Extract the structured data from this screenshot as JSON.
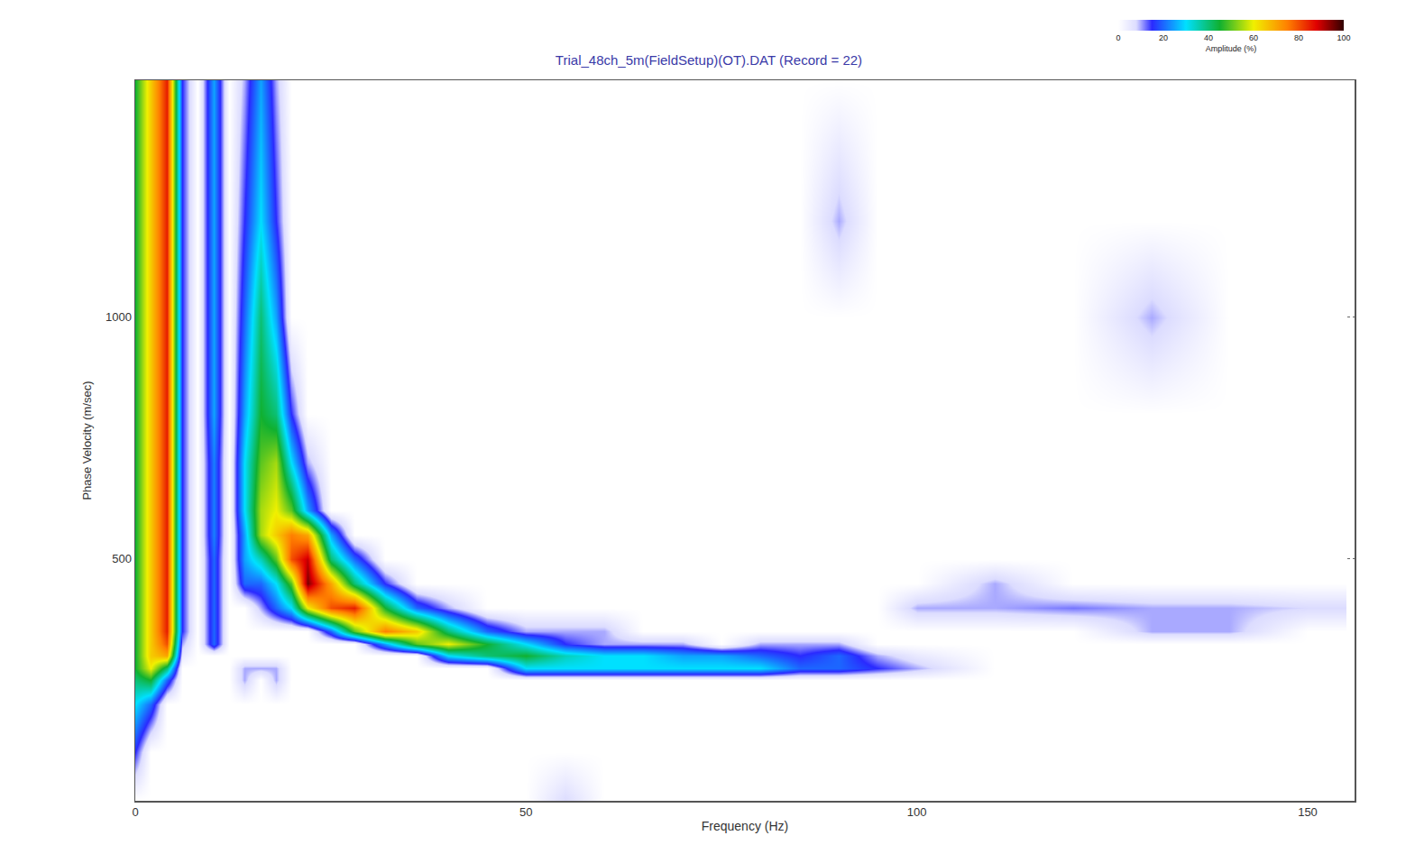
{
  "chart_data": {
    "type": "heatmap",
    "title": "Trial_48ch_5m(FieldSetup)(OT).DAT (Record = 22)",
    "x_label": "Frequency (Hz)",
    "y_label": "Phase Velocity (m/sec)",
    "xlim": [
      0,
      156
    ],
    "ylim": [
      0,
      1490
    ],
    "xticks": [
      0,
      50,
      100,
      150
    ],
    "yticks": [
      500,
      1000
    ],
    "grid": true,
    "colorbar_title": "Amplitude (%)",
    "colorbar_range": [
      0,
      100
    ],
    "colorbar_ticks": [
      0,
      20,
      40,
      60,
      80,
      100
    ],
    "x": [
      0,
      2,
      4,
      6,
      8,
      10,
      12,
      14,
      16,
      18,
      20,
      22,
      25,
      28,
      32,
      36,
      40,
      45,
      50,
      55,
      60,
      65,
      70,
      75,
      80,
      85,
      90,
      95,
      100,
      110,
      120,
      130,
      140,
      150
    ],
    "y": [
      0,
      100,
      200,
      250,
      275,
      300,
      325,
      350,
      400,
      450,
      500,
      550,
      600,
      700,
      800,
      1000,
      1200,
      1490
    ],
    "z": [
      [
        0,
        0,
        0,
        0,
        0,
        0,
        0,
        0,
        0,
        0,
        0,
        0,
        0,
        0,
        0,
        0,
        0,
        0,
        0,
        8,
        0,
        0,
        0,
        0,
        0,
        0,
        0,
        0,
        0,
        0,
        0,
        0,
        0,
        0
      ],
      [
        15,
        0,
        0,
        0,
        0,
        0,
        0,
        0,
        0,
        0,
        0,
        0,
        0,
        0,
        0,
        0,
        0,
        0,
        0,
        0,
        0,
        0,
        0,
        0,
        0,
        0,
        0,
        0,
        0,
        0,
        0,
        0,
        0,
        0
      ],
      [
        30,
        20,
        0,
        0,
        0,
        0,
        0,
        0,
        0,
        0,
        0,
        0,
        0,
        0,
        0,
        0,
        0,
        0,
        0,
        0,
        0,
        0,
        0,
        0,
        0,
        0,
        0,
        0,
        0,
        0,
        0,
        0,
        0,
        0
      ],
      [
        40,
        45,
        20,
        0,
        0,
        0,
        0,
        10,
        0,
        10,
        0,
        0,
        0,
        0,
        0,
        0,
        0,
        0,
        0,
        0,
        0,
        0,
        0,
        0,
        0,
        0,
        0,
        0,
        0,
        0,
        0,
        0,
        0,
        0
      ],
      [
        45,
        60,
        40,
        0,
        0,
        0,
        0,
        10,
        10,
        10,
        0,
        0,
        0,
        0,
        0,
        0,
        0,
        0,
        30,
        30,
        30,
        30,
        30,
        30,
        30,
        20,
        20,
        15,
        10,
        0,
        0,
        0,
        0,
        0
      ],
      [
        45,
        65,
        70,
        5,
        0,
        0,
        0,
        0,
        0,
        0,
        0,
        0,
        0,
        0,
        0,
        0,
        30,
        40,
        45,
        35,
        30,
        30,
        25,
        25,
        20,
        15,
        20,
        10,
        5,
        0,
        0,
        0,
        0,
        0
      ],
      [
        45,
        65,
        80,
        10,
        0,
        20,
        0,
        0,
        0,
        0,
        0,
        0,
        0,
        0,
        25,
        50,
        60,
        45,
        30,
        15,
        10,
        10,
        10,
        0,
        10,
        10,
        10,
        0,
        0,
        0,
        0,
        0,
        0,
        0
      ],
      [
        45,
        65,
        85,
        15,
        0,
        20,
        0,
        0,
        0,
        0,
        0,
        0,
        20,
        50,
        75,
        65,
        40,
        20,
        10,
        10,
        10,
        0,
        0,
        0,
        0,
        0,
        0,
        0,
        0,
        0,
        0,
        10,
        10,
        0
      ],
      [
        45,
        65,
        85,
        15,
        0,
        20,
        0,
        0,
        10,
        20,
        30,
        60,
        80,
        85,
        45,
        20,
        10,
        0,
        0,
        0,
        0,
        0,
        0,
        0,
        0,
        0,
        0,
        0,
        10,
        10,
        12,
        10,
        10,
        8
      ],
      [
        45,
        65,
        85,
        15,
        0,
        20,
        0,
        20,
        20,
        30,
        50,
        95,
        70,
        40,
        15,
        0,
        0,
        0,
        0,
        0,
        0,
        0,
        0,
        0,
        0,
        0,
        0,
        0,
        0,
        10,
        0,
        0,
        0,
        0
      ],
      [
        45,
        65,
        85,
        15,
        0,
        20,
        0,
        25,
        35,
        50,
        80,
        90,
        40,
        20,
        0,
        0,
        0,
        0,
        0,
        0,
        0,
        0,
        0,
        0,
        0,
        0,
        0,
        0,
        0,
        0,
        0,
        0,
        0,
        0
      ],
      [
        45,
        65,
        85,
        15,
        0,
        22,
        0,
        25,
        55,
        65,
        75,
        70,
        25,
        0,
        0,
        0,
        0,
        0,
        0,
        0,
        0,
        0,
        0,
        0,
        0,
        0,
        0,
        0,
        0,
        0,
        0,
        0,
        0,
        0
      ],
      [
        45,
        65,
        85,
        15,
        0,
        22,
        0,
        30,
        55,
        60,
        50,
        25,
        0,
        0,
        0,
        0,
        0,
        0,
        0,
        0,
        0,
        0,
        0,
        0,
        0,
        0,
        0,
        0,
        0,
        0,
        0,
        0,
        0,
        0
      ],
      [
        45,
        65,
        85,
        15,
        0,
        22,
        0,
        30,
        50,
        55,
        30,
        10,
        0,
        0,
        0,
        0,
        0,
        0,
        0,
        0,
        0,
        0,
        0,
        0,
        0,
        0,
        0,
        0,
        0,
        0,
        0,
        0,
        0,
        0
      ],
      [
        45,
        65,
        85,
        15,
        0,
        25,
        0,
        25,
        45,
        40,
        15,
        0,
        0,
        0,
        0,
        0,
        0,
        0,
        0,
        0,
        0,
        0,
        0,
        0,
        0,
        0,
        0,
        0,
        0,
        0,
        0,
        0,
        0,
        0
      ],
      [
        45,
        65,
        85,
        15,
        0,
        25,
        0,
        20,
        40,
        25,
        0,
        0,
        0,
        0,
        0,
        0,
        0,
        0,
        0,
        0,
        0,
        0,
        0,
        0,
        0,
        0,
        0,
        0,
        0,
        0,
        0,
        10,
        0,
        0
      ],
      [
        45,
        65,
        85,
        15,
        0,
        25,
        0,
        15,
        30,
        15,
        0,
        0,
        0,
        0,
        0,
        0,
        0,
        0,
        0,
        0,
        0,
        0,
        0,
        0,
        0,
        0,
        10,
        0,
        0,
        0,
        0,
        0,
        0,
        0
      ],
      [
        45,
        65,
        85,
        15,
        0,
        25,
        0,
        10,
        25,
        10,
        0,
        0,
        0,
        0,
        0,
        0,
        0,
        0,
        0,
        0,
        0,
        0,
        0,
        0,
        0,
        0,
        0,
        0,
        0,
        0,
        0,
        0,
        0,
        0
      ]
    ]
  }
}
